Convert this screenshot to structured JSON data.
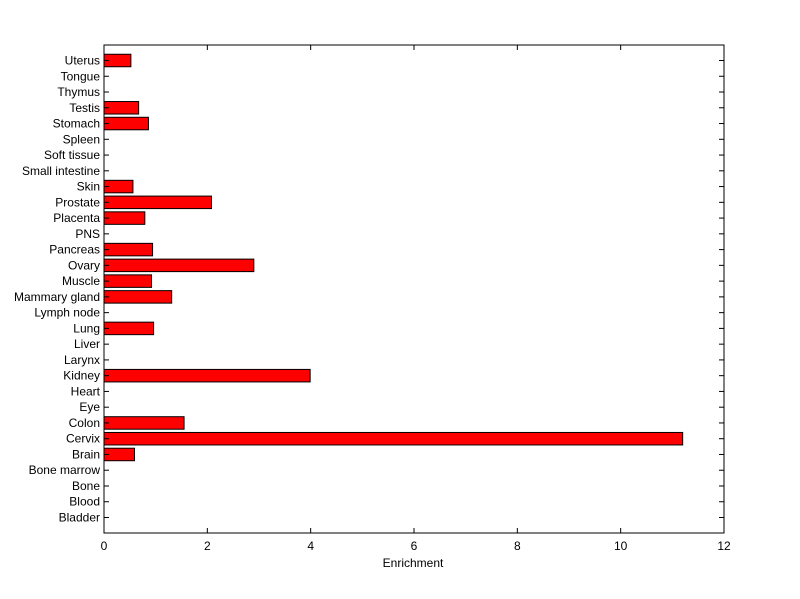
{
  "chart_data": {
    "type": "bar",
    "orientation": "horizontal",
    "title": "",
    "xlabel": "Enrichment",
    "ylabel": "",
    "xlim": [
      0,
      12
    ],
    "xticks": [
      0,
      2,
      4,
      6,
      8,
      10,
      12
    ],
    "grid": false,
    "bar_color": "#ff0000",
    "bar_edge_color": "#000000",
    "categories": [
      "Bladder",
      "Blood",
      "Bone",
      "Bone marrow",
      "Brain",
      "Cervix",
      "Colon",
      "Eye",
      "Heart",
      "Kidney",
      "Larynx",
      "Liver",
      "Lung",
      "Lymph node",
      "Mammary gland",
      "Muscle",
      "Ovary",
      "Pancreas",
      "PNS",
      "Placenta",
      "Prostate",
      "Skin",
      "Small intestine",
      "Soft tissue",
      "Spleen",
      "Stomach",
      "Testis",
      "Thymus",
      "Tongue",
      "Uterus"
    ],
    "values": [
      0,
      0,
      0,
      0,
      0.59,
      11.2,
      1.55,
      0,
      0,
      3.99,
      0,
      0,
      0.96,
      0,
      1.31,
      0.92,
      2.9,
      0.94,
      0,
      0.79,
      2.08,
      0.56,
      0,
      0,
      0,
      0.86,
      0.67,
      0,
      0,
      0.52
    ]
  }
}
